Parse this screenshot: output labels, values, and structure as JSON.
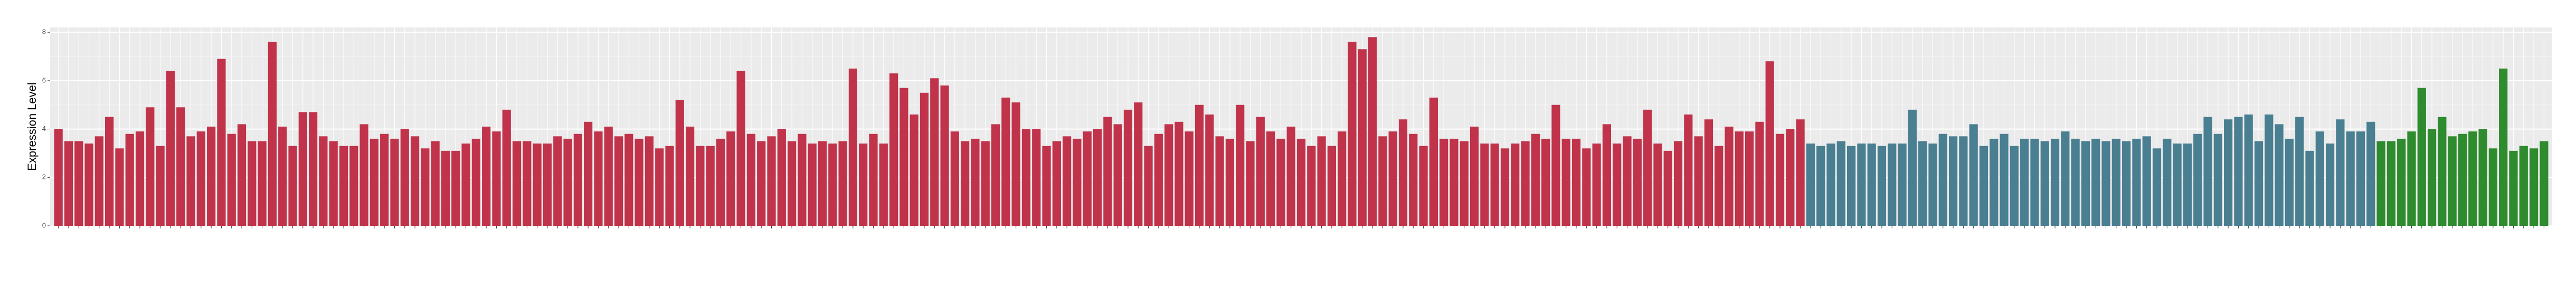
{
  "chart_data": {
    "type": "bar",
    "y_label": "Expression Level",
    "ylim": [
      0,
      8.2
    ],
    "yticks": [
      0,
      2,
      4,
      6,
      8
    ],
    "grid": true,
    "series": [
      {
        "color": "#c0334a",
        "values": [
          4.0,
          3.5,
          3.5,
          3.4,
          3.7,
          4.5,
          3.2,
          3.8,
          3.9,
          4.9,
          3.3,
          6.4,
          4.9,
          3.7,
          3.9,
          4.1,
          6.9,
          3.8,
          4.2,
          3.5,
          3.5,
          7.6,
          4.1,
          3.3,
          4.7,
          4.7,
          3.7,
          3.5,
          3.3,
          3.3,
          4.2,
          3.6,
          3.8,
          3.6,
          4.0,
          3.7,
          3.2,
          3.5,
          3.1,
          3.1,
          3.4,
          3.6,
          4.1,
          3.9,
          4.8,
          3.5,
          3.5,
          3.4,
          3.4,
          3.7,
          3.6,
          3.8,
          4.3,
          3.9,
          4.1,
          3.7,
          3.8,
          3.6,
          3.7,
          3.2,
          3.3,
          5.2,
          4.1,
          3.3,
          3.3,
          3.6,
          3.9,
          6.4,
          3.8,
          3.5,
          3.7,
          4.0,
          3.5,
          3.8,
          3.4,
          3.5,
          3.4,
          3.5,
          6.5,
          3.4,
          3.8,
          3.4,
          6.3,
          5.7,
          4.6,
          5.5,
          6.1,
          5.8,
          3.9,
          3.5,
          3.6,
          3.5,
          4.2,
          5.3,
          5.1,
          4.0,
          4.0,
          3.3,
          3.5,
          3.7,
          3.6,
          3.9,
          4.0,
          4.5,
          4.2,
          4.8,
          5.1,
          3.3,
          3.8,
          4.2,
          4.3,
          3.9,
          5.0,
          4.6,
          3.7,
          3.6,
          5.0,
          3.5,
          4.5,
          3.9,
          3.6,
          4.1,
          3.6,
          3.3,
          3.7,
          3.3,
          3.9,
          7.6,
          7.3,
          7.8,
          3.7,
          3.9,
          4.4,
          3.8,
          3.3,
          5.3,
          3.6,
          3.6,
          3.5,
          4.1,
          3.4,
          3.4,
          3.2,
          3.4,
          3.5,
          3.8,
          3.6,
          5.0,
          3.6,
          3.6,
          3.2,
          3.4,
          4.2,
          3.4,
          3.7,
          3.6,
          4.8,
          3.4,
          3.1,
          3.5,
          4.6,
          3.7,
          4.4,
          3.3,
          4.1,
          3.9,
          3.9,
          4.3,
          6.8,
          3.8,
          4.0,
          4.4
        ]
      },
      {
        "color": "#4a7f92",
        "values": [
          3.4,
          3.3,
          3.4,
          3.5,
          3.3,
          3.4,
          3.4,
          3.3,
          3.4,
          3.4,
          4.8,
          3.5,
          3.4,
          3.8,
          3.7,
          3.7,
          4.2,
          3.3,
          3.6,
          3.8,
          3.3,
          3.6,
          3.6,
          3.5,
          3.6,
          3.9,
          3.6,
          3.5,
          3.6,
          3.5,
          3.6,
          3.5,
          3.6,
          3.7,
          3.2,
          3.6,
          3.4,
          3.4,
          3.8,
          4.5,
          3.8,
          4.4,
          4.5,
          4.6,
          3.5,
          4.6,
          4.2,
          3.6,
          4.5,
          3.1,
          3.9,
          3.4,
          4.4,
          3.9,
          3.9,
          4.3
        ]
      },
      {
        "color": "#2e8b2e",
        "values": [
          3.5,
          3.5,
          3.6,
          3.9,
          5.7,
          4.0,
          4.5,
          3.7,
          3.8,
          3.9,
          4.0,
          3.2,
          6.5,
          3.1,
          3.3,
          3.2,
          3.5
        ]
      }
    ]
  }
}
